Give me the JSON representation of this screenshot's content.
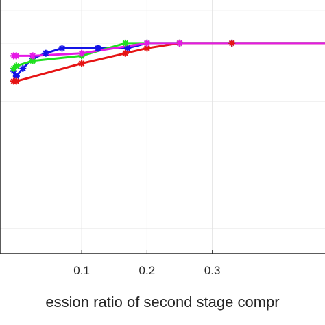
{
  "chart_data": {
    "type": "line",
    "title": "",
    "xlabel": "ession ratio of second stage compr",
    "ylabel": "",
    "xlim": [
      -0.025,
      0.4725
    ],
    "ylim": [
      0,
      1
    ],
    "x_ticks": [
      0.1,
      0.2,
      0.3
    ],
    "x_tick_labels": [
      "0.1",
      "0.2",
      "0.3"
    ],
    "grid": true,
    "series": [
      {
        "color": "#1414e6",
        "x": [
          -0.004,
          0.0,
          0.01,
          0.025,
          0.045,
          0.07,
          0.125,
          0.17,
          0.2,
          0.25,
          0.33,
          0.4725
        ],
        "y": [
          0.72,
          0.7,
          0.73,
          0.77,
          0.79,
          0.81,
          0.81,
          0.81,
          0.83,
          0.83,
          0.83,
          0.83
        ]
      },
      {
        "color": "#1fe01f",
        "x": [
          -0.004,
          0.0,
          0.025,
          0.1,
          0.167,
          0.2,
          0.25,
          0.4725
        ],
        "y": [
          0.73,
          0.74,
          0.76,
          0.78,
          0.83,
          0.83,
          0.83,
          0.83
        ]
      },
      {
        "color": "#e61414",
        "x": [
          -0.004,
          0.0,
          0.1,
          0.167,
          0.2,
          0.25,
          0.33,
          0.4725
        ],
        "y": [
          0.68,
          0.68,
          0.75,
          0.79,
          0.81,
          0.83,
          0.83,
          0.83
        ]
      },
      {
        "color": "#e619e6",
        "x": [
          -0.004,
          0.0,
          0.025,
          0.1,
          0.2,
          0.25,
          0.4725
        ],
        "y": [
          0.78,
          0.78,
          0.78,
          0.79,
          0.83,
          0.83,
          0.83
        ]
      }
    ]
  }
}
